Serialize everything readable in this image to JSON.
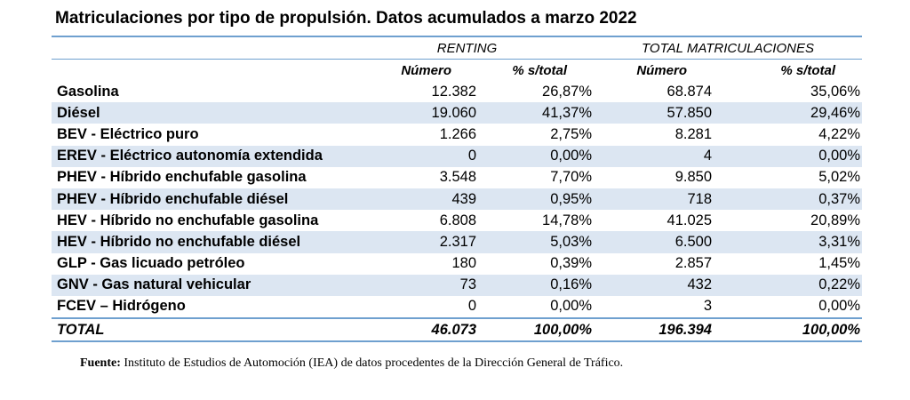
{
  "title": "Matriculaciones por tipo de propulsión. Datos acumulados a marzo 2022",
  "groups": [
    "RENTING",
    "TOTAL MATRICULACIONES"
  ],
  "subheaders": [
    "Número",
    "% s/total",
    "Número",
    "% s/total"
  ],
  "rows": [
    {
      "label": "Gasolina",
      "r_num": "12.382",
      "r_pct": "26,87%",
      "t_num": "68.874",
      "t_pct": "35,06%"
    },
    {
      "label": "Diésel",
      "r_num": "19.060",
      "r_pct": "41,37%",
      "t_num": "57.850",
      "t_pct": "29,46%"
    },
    {
      "label": "BEV - Eléctrico puro",
      "r_num": "1.266",
      "r_pct": "2,75%",
      "t_num": "8.281",
      "t_pct": "4,22%"
    },
    {
      "label": "EREV - Eléctrico autonomía extendida",
      "r_num": "0",
      "r_pct": "0,00%",
      "t_num": "4",
      "t_pct": "0,00%"
    },
    {
      "label": "PHEV - Híbrido enchufable gasolina",
      "r_num": "3.548",
      "r_pct": "7,70%",
      "t_num": "9.850",
      "t_pct": "5,02%"
    },
    {
      "label": "PHEV - Híbrido enchufable diésel",
      "r_num": "439",
      "r_pct": "0,95%",
      "t_num": "718",
      "t_pct": "0,37%"
    },
    {
      "label": "HEV - Híbrido no enchufable gasolina",
      "r_num": "6.808",
      "r_pct": "14,78%",
      "t_num": "41.025",
      "t_pct": "20,89%"
    },
    {
      "label": "HEV - Híbrido no enchufable diésel",
      "r_num": "2.317",
      "r_pct": "5,03%",
      "t_num": "6.500",
      "t_pct": "3,31%"
    },
    {
      "label": "GLP - Gas licuado petróleo",
      "r_num": "180",
      "r_pct": "0,39%",
      "t_num": "2.857",
      "t_pct": "1,45%"
    },
    {
      "label": "GNV - Gas natural vehicular",
      "r_num": "73",
      "r_pct": "0,16%",
      "t_num": "432",
      "t_pct": "0,22%"
    },
    {
      "label": "FCEV – Hidrógeno",
      "r_num": "0",
      "r_pct": "0,00%",
      "t_num": "3",
      "t_pct": "0,00%"
    }
  ],
  "total": {
    "label": "TOTAL",
    "r_num": "46.073",
    "r_pct": "100,00%",
    "t_num": "196.394",
    "t_pct": "100,00%"
  },
  "source": {
    "prefix": "Fuente:",
    "text": " Instituto de Estudios de Automoción (IEA) de datos procedentes de la Dirección General de Tráfico."
  },
  "colors": {
    "rule": "#6fa0cf",
    "shade": "#dce6f2"
  }
}
